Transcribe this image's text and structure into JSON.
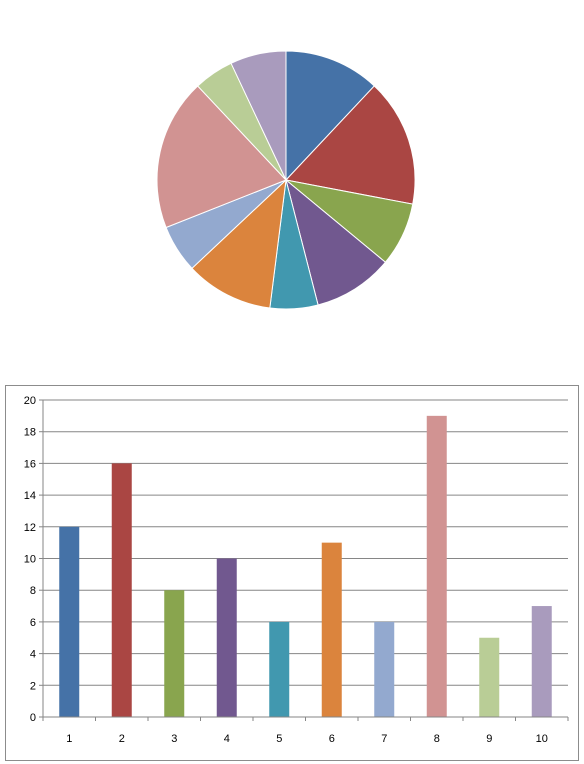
{
  "chart_data": [
    {
      "type": "pie",
      "values": [
        12,
        16,
        8,
        10,
        6,
        11,
        6,
        19,
        5,
        7
      ],
      "colors": [
        "#4572A7",
        "#AA4643",
        "#89A54E",
        "#71588F",
        "#4198AF",
        "#DB843D",
        "#93A9CF",
        "#D19392",
        "#B9CD96",
        "#A99BBD"
      ],
      "start_angle_deg": 0,
      "direction": "clockwise"
    },
    {
      "type": "bar",
      "categories": [
        "1",
        "2",
        "3",
        "4",
        "5",
        "6",
        "7",
        "8",
        "9",
        "10"
      ],
      "values": [
        12,
        16,
        8,
        10,
        6,
        11,
        6,
        19,
        5,
        7
      ],
      "colors": [
        "#4572A7",
        "#AA4643",
        "#89A54E",
        "#71588F",
        "#4198AF",
        "#DB843D",
        "#93A9CF",
        "#D19392",
        "#B9CD96",
        "#A99BBD"
      ],
      "ylim": [
        0,
        20
      ],
      "yticks": [
        0,
        2,
        4,
        6,
        8,
        10,
        12,
        14,
        16,
        18,
        20
      ],
      "grid": true,
      "legend": "none"
    }
  ]
}
